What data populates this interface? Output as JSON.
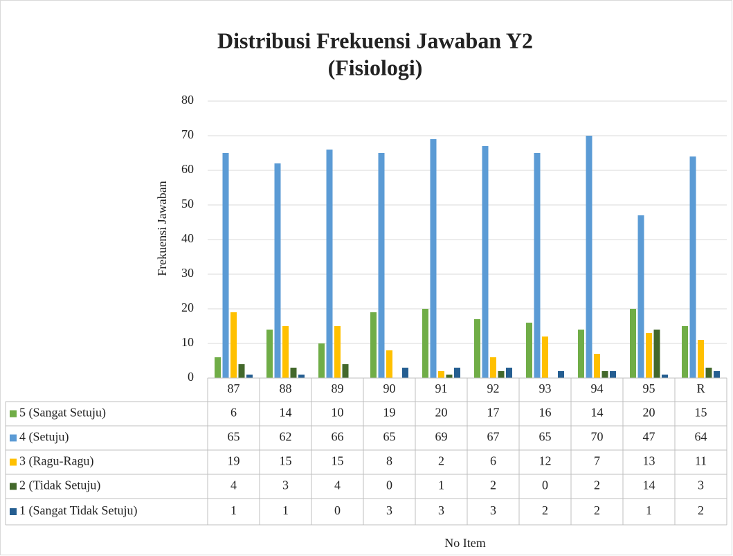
{
  "chart_data": {
    "type": "bar",
    "title": [
      "Distribusi Frekuensi Jawaban Y2",
      "(Fisiologi)"
    ],
    "y_label": "Frekuensi Jawaban",
    "x_label": "No Item",
    "categories": [
      "87",
      "88",
      "89",
      "90",
      "91",
      "92",
      "93",
      "94",
      "95",
      "R"
    ],
    "series": [
      {
        "name": "5 (Sangat Setuju)",
        "color": "#70ad47",
        "values": [
          6,
          14,
          10,
          19,
          20,
          17,
          16,
          14,
          20,
          15
        ]
      },
      {
        "name": "4 (Setuju)",
        "color": "#5b9bd5",
        "values": [
          65,
          62,
          66,
          65,
          69,
          67,
          65,
          70,
          47,
          64
        ]
      },
      {
        "name": "3 (Ragu-Ragu)",
        "color": "#ffc000",
        "values": [
          19,
          15,
          15,
          8,
          2,
          6,
          12,
          7,
          13,
          11
        ]
      },
      {
        "name": "2 (Tidak Setuju)",
        "color": "#43682b",
        "values": [
          4,
          3,
          4,
          0,
          1,
          2,
          0,
          2,
          14,
          3
        ]
      },
      {
        "name": "1 (Sangat Tidak Setuju)",
        "color": "#255e91",
        "values": [
          1,
          1,
          0,
          3,
          3,
          3,
          2,
          2,
          1,
          2
        ]
      }
    ],
    "ylim": [
      0,
      80
    ],
    "yticks": [
      0,
      10,
      20,
      30,
      40,
      50,
      60,
      70,
      80
    ],
    "grid": true
  }
}
